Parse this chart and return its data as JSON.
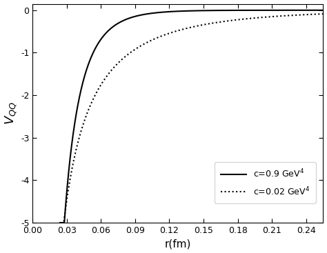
{
  "xlabel": "r(fm)",
  "ylabel": "$V_{QQ}$",
  "xlim": [
    0.0,
    0.255
  ],
  "ylim": [
    -5.0,
    0.15
  ],
  "yticks": [
    0,
    -1,
    -2,
    -3,
    -4,
    -5
  ],
  "xticks": [
    0.0,
    0.03,
    0.06,
    0.09,
    0.12,
    0.15,
    0.18,
    0.21,
    0.24
  ],
  "curve1_label": "c=0.9 GeV$^4$",
  "curve1_alpha": 0.4,
  "curve1_mu": 38.0,
  "curve1_rmin": 0.024,
  "curve2_label": "c=0.02 GeV$^4$",
  "curve2_alpha": 0.17,
  "curve2_mu": 8.0,
  "curve2_rmin": 0.025,
  "v_min": -5.0,
  "linewidth": 1.5,
  "color": "#000000",
  "figsize": [
    4.74,
    3.67
  ],
  "dpi": 100
}
